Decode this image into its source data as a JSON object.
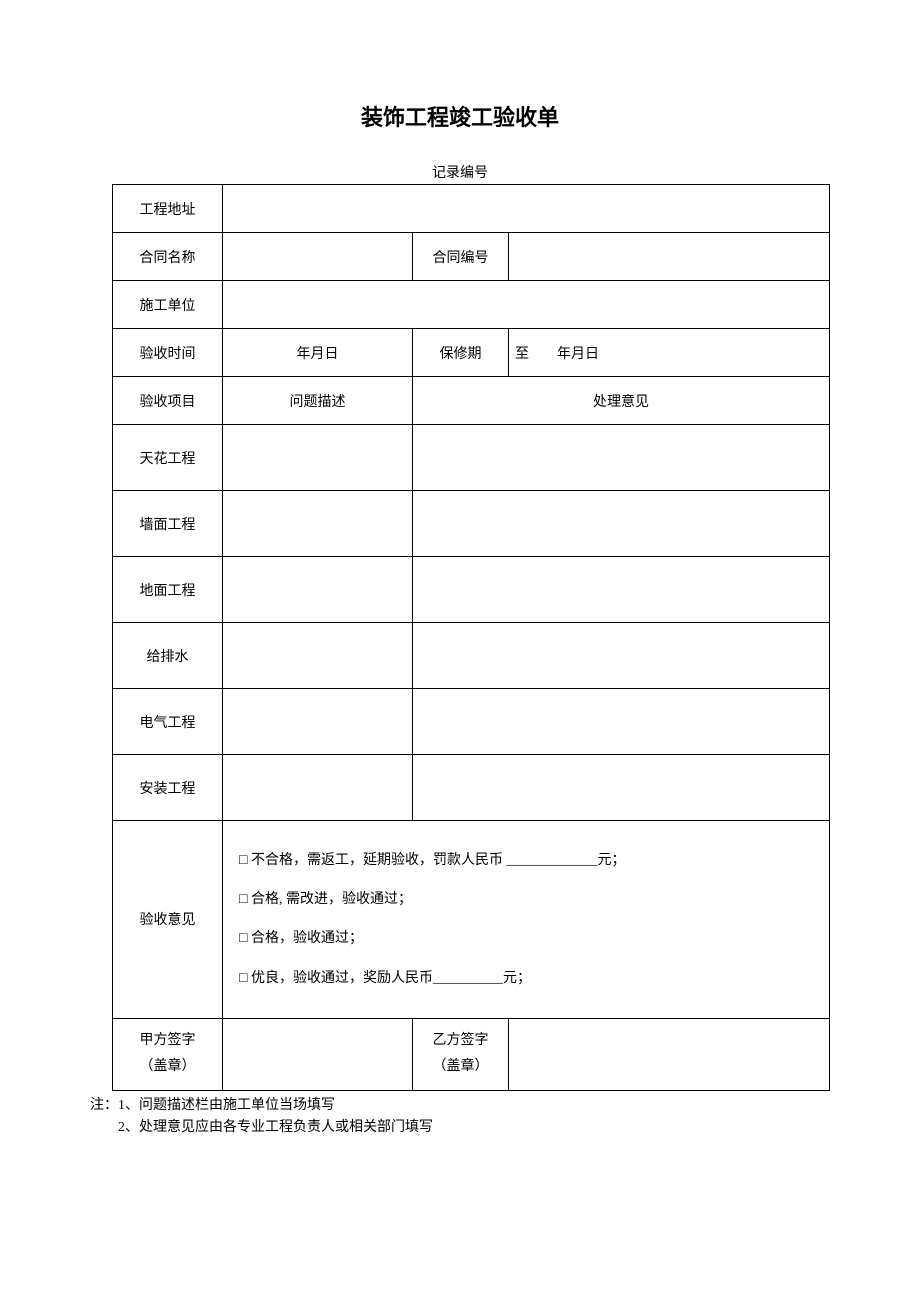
{
  "title": "装饰工程竣工验收单",
  "record_no_label": "记录编号",
  "rows": {
    "project_address_label": "工程地址",
    "contract_name_label": "合同名称",
    "contract_no_label": "合同编号",
    "construction_unit_label": "施工单位",
    "accept_time_label": "验收时间",
    "accept_time_value": "年月日",
    "warranty_label": "保修期",
    "warranty_value": "至  年月日",
    "accept_item_label": "验收项目",
    "problem_desc_label": "问题描述",
    "handle_opinion_label": "处理意见"
  },
  "items": [
    "天花工程",
    "墙面工程",
    "地面工程",
    "给排水",
    "电气工程",
    "安装工程"
  ],
  "opinion": {
    "label": "验收意见",
    "opt1": "□ 不合格，需返工，延期验收，罚款人民币 _____________元；",
    "opt2": "□ 合格, 需改进，验收通过；",
    "opt3": "□ 合格，验收通过；",
    "opt4": "□ 优良，验收通过，奖励人民币__________元；"
  },
  "sign": {
    "party_a_label1": "甲方签字",
    "party_a_label2": "（盖章）",
    "party_b_label1": "乙方签字",
    "party_b_label2": "（盖章）"
  },
  "notes": {
    "line1": "注：1、问题描述栏由施工单位当场填写",
    "line2": "2、处理意见应由各专业工程负责人或相关部门填写"
  },
  "colors": {
    "background": "#ffffff",
    "text": "#000000",
    "border": "#000000"
  }
}
